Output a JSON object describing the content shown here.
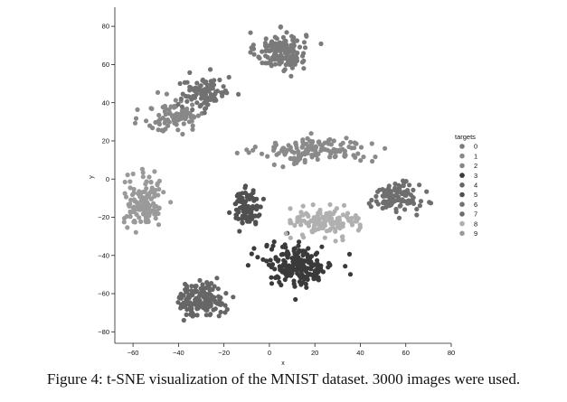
{
  "caption": "Figure 4: t-SNE visualization of the MNIST dataset. 3000 images were used.",
  "chart_data": {
    "type": "scatter",
    "xlabel": "x",
    "ylabel": "y",
    "xlim": [
      -68,
      80
    ],
    "ylim": [
      -86,
      90
    ],
    "xticks": [
      -60,
      -40,
      -20,
      0,
      20,
      40,
      60,
      80
    ],
    "yticks": [
      -80,
      -60,
      -40,
      -20,
      0,
      20,
      40,
      60,
      80
    ],
    "grid": false,
    "legend": {
      "title": "targets",
      "placement": "right",
      "labels": [
        "0",
        "1",
        "2",
        "3",
        "4",
        "5",
        "6",
        "7",
        "8",
        "9"
      ]
    },
    "series_colors": [
      "#7a7a7a",
      "#8a8a8a",
      "#888888",
      "#3a3a3a",
      "#666666",
      "#505050",
      "#717171",
      "#6e6e6e",
      "#b0b0b0",
      "#9a9a9a"
    ],
    "clusters": [
      {
        "label": "0",
        "center": [
          5,
          67
        ],
        "spread": [
          10,
          9
        ],
        "count": 150
      },
      {
        "label": "1",
        "center": [
          20,
          15
        ],
        "spread": [
          22,
          6
        ],
        "count": 150
      },
      {
        "label": "2",
        "center": [
          -42,
          33
        ],
        "spread": [
          12,
          8
        ],
        "count": 90
      },
      {
        "label": "3",
        "center": [
          13,
          -45
        ],
        "spread": [
          14,
          10
        ],
        "count": 200
      },
      {
        "label": "4",
        "center": [
          -30,
          -63
        ],
        "spread": [
          9,
          8
        ],
        "count": 150
      },
      {
        "label": "5",
        "center": [
          -10,
          -15
        ],
        "spread": [
          6,
          8
        ],
        "count": 100
      },
      {
        "label": "6",
        "center": [
          -28,
          45
        ],
        "spread": [
          10,
          8
        ],
        "count": 100
      },
      {
        "label": "7",
        "center": [
          55,
          -10
        ],
        "spread": [
          10,
          7
        ],
        "count": 110
      },
      {
        "label": "8",
        "center": [
          25,
          -22
        ],
        "spread": [
          13,
          7
        ],
        "count": 130
      },
      {
        "label": "9",
        "center": [
          -55,
          -12
        ],
        "spread": [
          8,
          12
        ],
        "count": 130
      }
    ]
  }
}
